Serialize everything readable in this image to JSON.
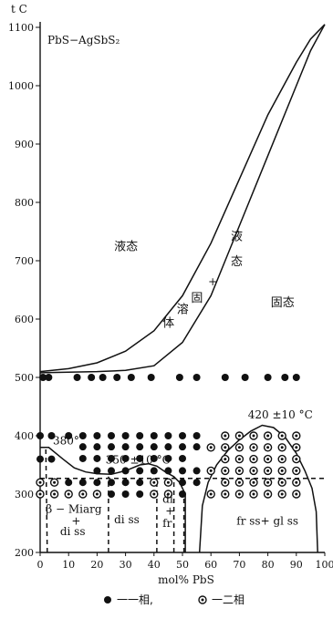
{
  "chart_data": {
    "type": "scatter",
    "ylabel": "t C",
    "xlabel": "mol% PbS",
    "system_label": "PbS−AgSbS₂",
    "xlim": [
      0,
      100
    ],
    "ylim": [
      200,
      1100
    ],
    "x_ticks": [
      {
        "v": 0,
        "t": "0"
      },
      {
        "v": 10,
        "t": "10"
      },
      {
        "v": 20,
        "t": "20"
      },
      {
        "v": 30,
        "t": "30"
      },
      {
        "v": 40,
        "t": "40"
      },
      {
        "v": 50,
        "t": "50"
      },
      {
        "v": 60,
        "t": "60"
      },
      {
        "v": 70,
        "t": "70"
      },
      {
        "v": 80,
        "t": "80"
      },
      {
        "v": 90,
        "t": "90"
      },
      {
        "v": 100,
        "t": "100"
      }
    ],
    "y_ticks": [
      {
        "v": 200,
        "t": "200"
      },
      {
        "v": 300,
        "t": "300"
      },
      {
        "v": 400,
        "t": "400"
      },
      {
        "v": 500,
        "t": "500"
      },
      {
        "v": 600,
        "t": "600"
      },
      {
        "v": 700,
        "t": "700"
      },
      {
        "v": 800,
        "t": "800"
      },
      {
        "v": 900,
        "t": "900"
      },
      {
        "v": 1000,
        "t": "1000"
      },
      {
        "v": 1100,
        "t": "1100"
      }
    ],
    "liquidus": [
      [
        0,
        510
      ],
      [
        10,
        515
      ],
      [
        20,
        525
      ],
      [
        30,
        545
      ],
      [
        40,
        580
      ],
      [
        50,
        640
      ],
      [
        60,
        730
      ],
      [
        70,
        840
      ],
      [
        80,
        950
      ],
      [
        90,
        1040
      ],
      [
        95,
        1080
      ],
      [
        100,
        1105
      ]
    ],
    "solidus": [
      [
        0,
        508
      ],
      [
        10,
        509
      ],
      [
        20,
        510
      ],
      [
        30,
        512
      ],
      [
        40,
        520
      ],
      [
        50,
        560
      ],
      [
        60,
        640
      ],
      [
        70,
        760
      ],
      [
        80,
        880
      ],
      [
        90,
        1000
      ],
      [
        95,
        1060
      ],
      [
        100,
        1105
      ]
    ],
    "solvus_left": [
      [
        0,
        380
      ],
      [
        3,
        380
      ],
      [
        8,
        360
      ],
      [
        12,
        345
      ],
      [
        16,
        338
      ],
      [
        20,
        335
      ],
      [
        25,
        334
      ],
      [
        30,
        340
      ],
      [
        35,
        350
      ],
      [
        38,
        352
      ],
      [
        41,
        348
      ],
      [
        44,
        338
      ],
      [
        47,
        330
      ],
      [
        49,
        320
      ],
      [
        51,
        300
      ],
      [
        51,
        200
      ]
    ],
    "solvus_right": [
      [
        56,
        200
      ],
      [
        57,
        280
      ],
      [
        59,
        320
      ],
      [
        62,
        350
      ],
      [
        66,
        375
      ],
      [
        70,
        393
      ],
      [
        74,
        408
      ],
      [
        78,
        418
      ],
      [
        82,
        414
      ],
      [
        86,
        398
      ],
      [
        90,
        370
      ],
      [
        93,
        340
      ],
      [
        95.5,
        310
      ],
      [
        97,
        270
      ],
      [
        97.5,
        200
      ]
    ],
    "dashed_isotherm": [
      [
        0,
        327
      ],
      [
        100,
        327
      ]
    ],
    "dashed_boundaries": [
      [
        [
          24,
          200
        ],
        [
          24,
          330
        ]
      ],
      [
        [
          41,
          200
        ],
        [
          41,
          328
        ]
      ],
      [
        [
          47,
          200
        ],
        [
          47,
          330
        ]
      ],
      [
        [
          50.5,
          200
        ],
        [
          50.5,
          300
        ]
      ],
      [
        [
          2.5,
          200
        ],
        [
          2,
          380
        ]
      ]
    ],
    "one_phase_points": [
      [
        1,
        500
      ],
      [
        3,
        500
      ],
      [
        13,
        500
      ],
      [
        18,
        500
      ],
      [
        22,
        500
      ],
      [
        27,
        500
      ],
      [
        32,
        500
      ],
      [
        39,
        500
      ],
      [
        49,
        500
      ],
      [
        55,
        500
      ],
      [
        65,
        500
      ],
      [
        72,
        500
      ],
      [
        80,
        500
      ],
      [
        86,
        500
      ],
      [
        90,
        500
      ],
      [
        0,
        400
      ],
      [
        4,
        400
      ],
      [
        10,
        400
      ],
      [
        15,
        400
      ],
      [
        20,
        400
      ],
      [
        25,
        400
      ],
      [
        30,
        400
      ],
      [
        35,
        400
      ],
      [
        40,
        400
      ],
      [
        45,
        400
      ],
      [
        50,
        400
      ],
      [
        55,
        400
      ],
      [
        15,
        381
      ],
      [
        20,
        381
      ],
      [
        25,
        381
      ],
      [
        30,
        381
      ],
      [
        35,
        381
      ],
      [
        40,
        381
      ],
      [
        45,
        381
      ],
      [
        50,
        381
      ],
      [
        55,
        381
      ],
      [
        15,
        361
      ],
      [
        20,
        361
      ],
      [
        25,
        361
      ],
      [
        30,
        361
      ],
      [
        35,
        361
      ],
      [
        40,
        361
      ],
      [
        45,
        361
      ],
      [
        50,
        361
      ],
      [
        0,
        360
      ],
      [
        4,
        360
      ],
      [
        20,
        340
      ],
      [
        25,
        340
      ],
      [
        30,
        340
      ],
      [
        35,
        340
      ],
      [
        40,
        340
      ],
      [
        45,
        340
      ],
      [
        50,
        340
      ],
      [
        55,
        340
      ],
      [
        10,
        320
      ],
      [
        15,
        320
      ],
      [
        20,
        320
      ],
      [
        25,
        320
      ],
      [
        30,
        320
      ],
      [
        35,
        320
      ],
      [
        40,
        320
      ],
      [
        45,
        320
      ],
      [
        50,
        320
      ],
      [
        55,
        320
      ],
      [
        25,
        300
      ],
      [
        30,
        300
      ],
      [
        35,
        300
      ],
      [
        40,
        300
      ],
      [
        45,
        300
      ],
      [
        50,
        300
      ]
    ],
    "two_phase_points": [
      [
        65,
        400
      ],
      [
        70,
        400
      ],
      [
        75,
        400
      ],
      [
        80,
        400
      ],
      [
        85,
        400
      ],
      [
        90,
        400
      ],
      [
        60,
        380
      ],
      [
        65,
        380
      ],
      [
        70,
        380
      ],
      [
        75,
        380
      ],
      [
        80,
        380
      ],
      [
        85,
        380
      ],
      [
        90,
        380
      ],
      [
        65,
        360
      ],
      [
        70,
        360
      ],
      [
        75,
        360
      ],
      [
        80,
        360
      ],
      [
        85,
        360
      ],
      [
        90,
        360
      ],
      [
        60,
        340
      ],
      [
        65,
        340
      ],
      [
        70,
        340
      ],
      [
        75,
        340
      ],
      [
        80,
        340
      ],
      [
        85,
        340
      ],
      [
        90,
        340
      ],
      [
        65,
        320
      ],
      [
        70,
        320
      ],
      [
        75,
        320
      ],
      [
        80,
        320
      ],
      [
        85,
        320
      ],
      [
        90,
        320
      ],
      [
        60,
        300
      ],
      [
        65,
        300
      ],
      [
        70,
        300
      ],
      [
        75,
        300
      ],
      [
        80,
        300
      ],
      [
        85,
        300
      ],
      [
        90,
        300
      ],
      [
        0,
        300
      ],
      [
        5,
        300
      ],
      [
        10,
        300
      ],
      [
        15,
        300
      ],
      [
        20,
        300
      ],
      [
        0,
        320
      ],
      [
        5,
        320
      ],
      [
        40,
        320
      ],
      [
        45,
        320
      ],
      [
        40,
        300
      ],
      [
        45,
        300
      ]
    ],
    "annotations": [
      {
        "id": "liquid",
        "text": "液态",
        "x": 26,
        "y": 718
      },
      {
        "id": "liquid-2",
        "text": "液",
        "x": 67,
        "y": 735
      },
      {
        "id": "liquid-3",
        "text": "态",
        "x": 67,
        "y": 692
      },
      {
        "id": "plus",
        "text": "+",
        "x": 59,
        "y": 658
      },
      {
        "id": "solid-solution-1",
        "text": "固",
        "x": 53,
        "y": 630
      },
      {
        "id": "solid-solution-2",
        "text": "溶",
        "x": 48,
        "y": 610
      },
      {
        "id": "solid-solution-3",
        "text": "体",
        "x": 43,
        "y": 587
      },
      {
        "id": "solid",
        "text": "固态",
        "x": 81,
        "y": 622
      },
      {
        "id": "t420",
        "text": "420 ±10 °C",
        "x": 73,
        "y": 430
      },
      {
        "id": "t380",
        "text": "380°",
        "x": 4.5,
        "y": 385
      },
      {
        "id": "t350",
        "text": "350 ±10 °C",
        "x": 23,
        "y": 352
      },
      {
        "id": "beta",
        "text": "β − Miarg",
        "x": 2,
        "y": 268
      },
      {
        "id": "beta-plus",
        "text": "+",
        "x": 11,
        "y": 248
      },
      {
        "id": "beta-diss",
        "text": "di ss",
        "x": 7,
        "y": 230
      },
      {
        "id": "di-ss",
        "text": "di ss",
        "x": 26,
        "y": 250
      },
      {
        "id": "di",
        "text": "di",
        "x": 43,
        "y": 285
      },
      {
        "id": "di-plus",
        "text": "+",
        "x": 44,
        "y": 265
      },
      {
        "id": "fr",
        "text": "fr",
        "x": 43,
        "y": 244
      },
      {
        "id": "fr-gl",
        "text": "fr ss+ gl ss",
        "x": 69,
        "y": 248
      }
    ],
    "legend": [
      {
        "marker": "filled",
        "text": "一一相,"
      },
      {
        "marker": "open",
        "text": "一二相"
      }
    ]
  }
}
